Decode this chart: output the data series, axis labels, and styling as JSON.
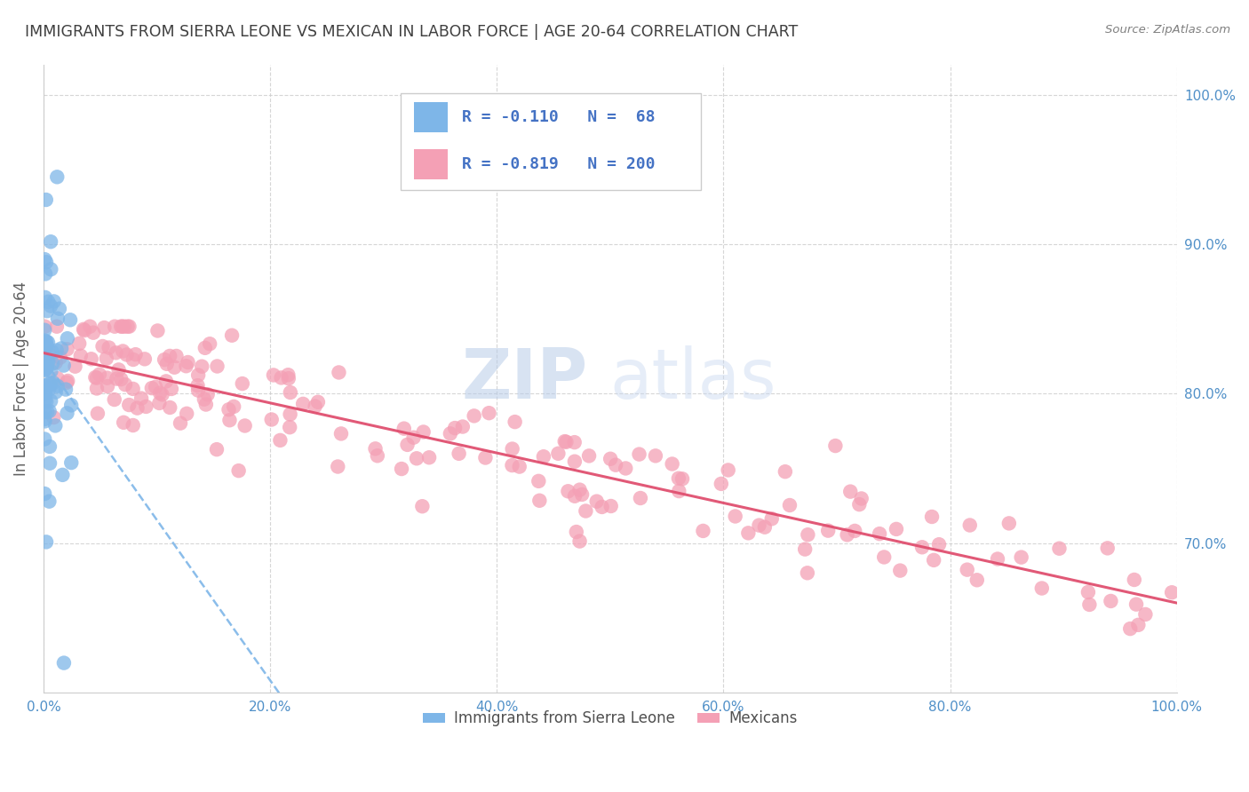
{
  "title": "IMMIGRANTS FROM SIERRA LEONE VS MEXICAN IN LABOR FORCE | AGE 20-64 CORRELATION CHART",
  "source": "Source: ZipAtlas.com",
  "ylabel_label": "In Labor Force | Age 20-64",
  "legend_label1": "Immigrants from Sierra Leone",
  "legend_label2": "Mexicans",
  "R1": -0.11,
  "N1": 68,
  "R2": -0.819,
  "N2": 200,
  "color_blue": "#7EB6E8",
  "color_blue_dark": "#4472C4",
  "color_pink": "#F4A0B5",
  "color_pink_line": "#E05070",
  "color_blue_line": "#7EB6E8",
  "watermark_zip": "ZIP",
  "watermark_atlas": "atlas",
  "watermark_color": "#C8D8F0",
  "background_color": "#FFFFFF",
  "grid_color": "#CCCCCC",
  "title_color": "#404040",
  "axis_tick_color": "#5090C8",
  "legend_text_color": "#4472C4",
  "ylabel_color": "#606060",
  "source_color": "#808080",
  "xlim": [
    0.0,
    1.0
  ],
  "ylim": [
    0.6,
    1.02
  ],
  "yticks": [
    0.7,
    0.8,
    0.9,
    1.0
  ],
  "xticks": [
    0.0,
    0.2,
    0.4,
    0.6,
    0.8,
    1.0
  ]
}
